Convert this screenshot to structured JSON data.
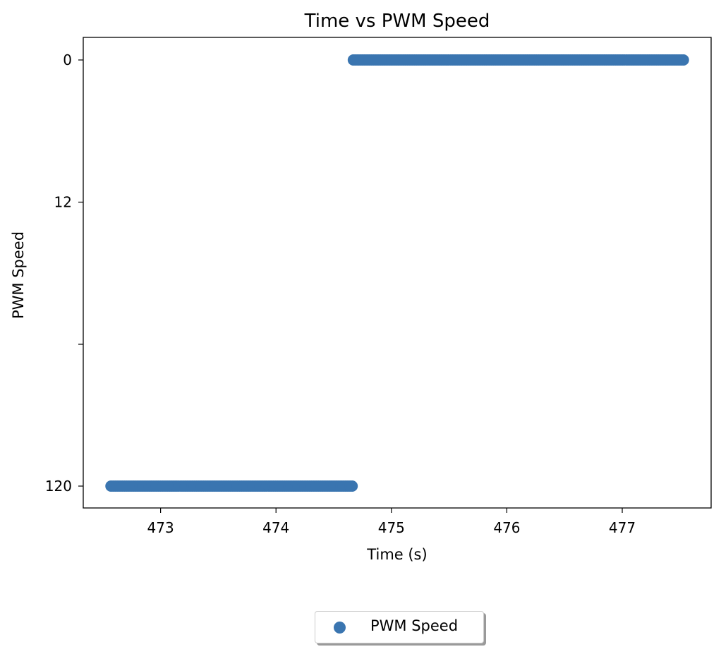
{
  "chart_data": {
    "type": "scatter",
    "title": "Time vs PWM Speed",
    "xlabel": "Time (s)",
    "ylabel": "PWM Speed",
    "xlim": [
      472.33,
      477.77
    ],
    "xticks": [
      473,
      474,
      475,
      476,
      477
    ],
    "y_axis": {
      "scale": "categorical, inverted",
      "categories": [
        "0",
        "12",
        "",
        "120"
      ],
      "tick_labels": [
        "0",
        "12",
        "",
        "120"
      ]
    },
    "grid": false,
    "legend_placement": "bottom-center, outside plot",
    "marker_color": "#3a75b0",
    "series": [
      {
        "name": "PWM Speed",
        "segments": [
          {
            "x_start": 472.57,
            "x_end": 474.66,
            "y": "120"
          },
          {
            "x_start": 474.67,
            "x_end": 477.53,
            "y": "0"
          }
        ]
      }
    ]
  }
}
